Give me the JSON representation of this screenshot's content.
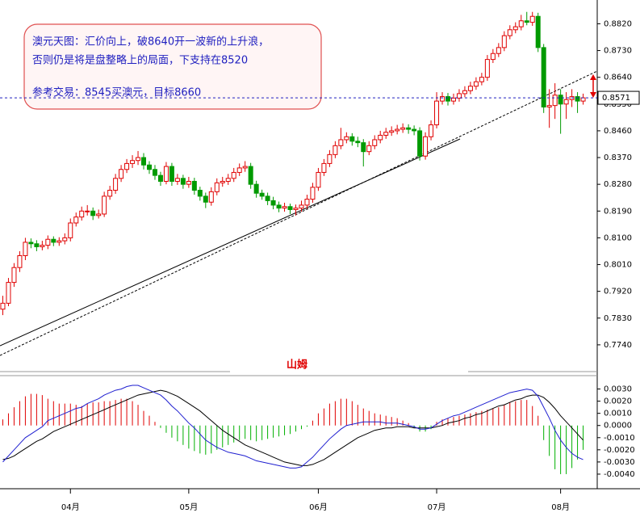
{
  "author": "山姆",
  "chart_data": [
    {
      "type": "candlestick",
      "up_color": "#e00000",
      "down_color": "#009a00",
      "annotations": [
        "澳元天图：汇价向上，破8640开一波新的上升浪，",
        "否则仍是将是盘整略上的局面，下支持在8520",
        "参考交易：8545买澳元，目标8660"
      ],
      "xlim": [
        -0.5,
        105.5
      ],
      "ylim": [
        0.765,
        0.89
      ],
      "yticks": [
        {
          "value": 0.882,
          "label": "0.8820"
        },
        {
          "value": 0.873,
          "label": "0.8730"
        },
        {
          "value": 0.864,
          "label": "0.8640"
        },
        {
          "value": 0.855,
          "label": "0.8550"
        },
        {
          "value": 0.846,
          "label": "0.8460"
        },
        {
          "value": 0.837,
          "label": "0.8370"
        },
        {
          "value": 0.828,
          "label": "0.8280"
        },
        {
          "value": 0.819,
          "label": "0.8190"
        },
        {
          "value": 0.81,
          "label": "0.8100"
        },
        {
          "value": 0.801,
          "label": "0.8010"
        },
        {
          "value": 0.792,
          "label": "0.7920"
        },
        {
          "value": 0.783,
          "label": "0.7830"
        },
        {
          "value": 0.774,
          "label": "0.7740"
        }
      ],
      "ohlc": [
        [
          0.786,
          0.7905,
          0.784,
          0.788
        ],
        [
          0.788,
          0.7965,
          0.787,
          0.795
        ],
        [
          0.795,
          0.8015,
          0.7935,
          0.8
        ],
        [
          0.8,
          0.8055,
          0.7985,
          0.804
        ],
        [
          0.804,
          0.81,
          0.8025,
          0.8085
        ],
        [
          0.8085,
          0.8098,
          0.8065,
          0.808
        ],
        [
          0.808,
          0.8092,
          0.8055,
          0.807
        ],
        [
          0.807,
          0.809,
          0.8058,
          0.8075
        ],
        [
          0.8075,
          0.8108,
          0.8062,
          0.8095
        ],
        [
          0.8095,
          0.8105,
          0.8072,
          0.8085
        ],
        [
          0.8085,
          0.8102,
          0.8073,
          0.809
        ],
        [
          0.809,
          0.8115,
          0.8078,
          0.81
        ],
        [
          0.81,
          0.8165,
          0.8088,
          0.815
        ],
        [
          0.815,
          0.8185,
          0.8138,
          0.817
        ],
        [
          0.817,
          0.8205,
          0.8158,
          0.819
        ],
        [
          0.819,
          0.821,
          0.8175,
          0.819
        ],
        [
          0.819,
          0.8202,
          0.816,
          0.8175
        ],
        [
          0.8175,
          0.8195,
          0.8165,
          0.818
        ],
        [
          0.818,
          0.8255,
          0.817,
          0.824
        ],
        [
          0.824,
          0.8275,
          0.8228,
          0.826
        ],
        [
          0.826,
          0.8315,
          0.8248,
          0.83
        ],
        [
          0.83,
          0.8345,
          0.8288,
          0.833
        ],
        [
          0.833,
          0.8365,
          0.8318,
          0.835
        ],
        [
          0.835,
          0.8378,
          0.8335,
          0.836
        ],
        [
          0.836,
          0.8392,
          0.8345,
          0.837
        ],
        [
          0.837,
          0.8385,
          0.833,
          0.8345
        ],
        [
          0.8345,
          0.8358,
          0.8315,
          0.833
        ],
        [
          0.833,
          0.8345,
          0.8295,
          0.831
        ],
        [
          0.831,
          0.8322,
          0.8275,
          0.829
        ],
        [
          0.829,
          0.8355,
          0.828,
          0.834
        ],
        [
          0.834,
          0.8352,
          0.8275,
          0.829
        ],
        [
          0.829,
          0.8315,
          0.8278,
          0.83
        ],
        [
          0.83,
          0.8312,
          0.8265,
          0.828
        ],
        [
          0.828,
          0.8305,
          0.8268,
          0.829
        ],
        [
          0.829,
          0.8302,
          0.8245,
          0.826
        ],
        [
          0.826,
          0.8272,
          0.8225,
          0.824
        ],
        [
          0.824,
          0.8252,
          0.82,
          0.822
        ],
        [
          0.822,
          0.827,
          0.8208,
          0.8255
        ],
        [
          0.8255,
          0.83,
          0.8243,
          0.8285
        ],
        [
          0.8285,
          0.8305,
          0.8272,
          0.829
        ],
        [
          0.829,
          0.8315,
          0.8278,
          0.83
        ],
        [
          0.83,
          0.8335,
          0.8288,
          0.832
        ],
        [
          0.832,
          0.835,
          0.8308,
          0.8335
        ],
        [
          0.8335,
          0.8358,
          0.8322,
          0.834
        ],
        [
          0.834,
          0.8352,
          0.8265,
          0.828
        ],
        [
          0.828,
          0.8292,
          0.8235,
          0.825
        ],
        [
          0.825,
          0.8262,
          0.8228,
          0.824
        ],
        [
          0.824,
          0.8252,
          0.821,
          0.8225
        ],
        [
          0.8225,
          0.8238,
          0.8196,
          0.821
        ],
        [
          0.821,
          0.8222,
          0.8186,
          0.82
        ],
        [
          0.82,
          0.8218,
          0.8188,
          0.8205
        ],
        [
          0.8205,
          0.8215,
          0.818,
          0.8195
        ],
        [
          0.8195,
          0.8212,
          0.8175,
          0.82
        ],
        [
          0.82,
          0.8225,
          0.8188,
          0.821
        ],
        [
          0.821,
          0.8245,
          0.8198,
          0.823
        ],
        [
          0.823,
          0.8285,
          0.8218,
          0.827
        ],
        [
          0.827,
          0.8335,
          0.8258,
          0.832
        ],
        [
          0.832,
          0.8365,
          0.8308,
          0.835
        ],
        [
          0.835,
          0.8395,
          0.8338,
          0.838
        ],
        [
          0.838,
          0.8425,
          0.8368,
          0.841
        ],
        [
          0.841,
          0.847,
          0.8398,
          0.843
        ],
        [
          0.843,
          0.8455,
          0.8418,
          0.844
        ],
        [
          0.844,
          0.8452,
          0.841,
          0.8425
        ],
        [
          0.8425,
          0.844,
          0.8405,
          0.842
        ],
        [
          0.842,
          0.8432,
          0.834,
          0.839
        ],
        [
          0.839,
          0.8425,
          0.8378,
          0.841
        ],
        [
          0.841,
          0.8445,
          0.8398,
          0.843
        ],
        [
          0.843,
          0.846,
          0.8418,
          0.8445
        ],
        [
          0.8445,
          0.847,
          0.8433,
          0.8455
        ],
        [
          0.8455,
          0.8475,
          0.8443,
          0.846
        ],
        [
          0.846,
          0.848,
          0.8448,
          0.8465
        ],
        [
          0.8465,
          0.8485,
          0.8453,
          0.847
        ],
        [
          0.847,
          0.8482,
          0.845,
          0.8465
        ],
        [
          0.8465,
          0.8478,
          0.8445,
          0.846
        ],
        [
          0.846,
          0.8472,
          0.836,
          0.8375
        ],
        [
          0.8375,
          0.8455,
          0.8363,
          0.844
        ],
        [
          0.844,
          0.8495,
          0.8428,
          0.848
        ],
        [
          0.848,
          0.859,
          0.8468,
          0.856
        ],
        [
          0.856,
          0.859,
          0.8548,
          0.8575
        ],
        [
          0.8575,
          0.8587,
          0.8545,
          0.856
        ],
        [
          0.856,
          0.8585,
          0.8548,
          0.857
        ],
        [
          0.857,
          0.86,
          0.8558,
          0.8585
        ],
        [
          0.8585,
          0.861,
          0.8573,
          0.8595
        ],
        [
          0.8595,
          0.8625,
          0.8583,
          0.861
        ],
        [
          0.861,
          0.864,
          0.8598,
          0.8625
        ],
        [
          0.8625,
          0.8655,
          0.8613,
          0.864
        ],
        [
          0.864,
          0.8715,
          0.8628,
          0.87
        ],
        [
          0.87,
          0.8735,
          0.8688,
          0.872
        ],
        [
          0.872,
          0.8755,
          0.8708,
          0.874
        ],
        [
          0.874,
          0.8795,
          0.8728,
          0.878
        ],
        [
          0.878,
          0.8815,
          0.8768,
          0.88
        ],
        [
          0.88,
          0.8825,
          0.8788,
          0.881
        ],
        [
          0.881,
          0.885,
          0.8798,
          0.883
        ],
        [
          0.883,
          0.886,
          0.8815,
          0.8825
        ],
        [
          0.8825,
          0.886,
          0.8813,
          0.8845
        ],
        [
          0.8845,
          0.8857,
          0.8725,
          0.874
        ],
        [
          0.874,
          0.8752,
          0.852,
          0.854
        ],
        [
          0.854,
          0.86,
          0.847,
          0.8545
        ],
        [
          0.8545,
          0.862,
          0.85,
          0.858
        ],
        [
          0.858,
          0.86,
          0.845,
          0.855
        ],
        [
          0.855,
          0.859,
          0.85,
          0.8565
        ],
        [
          0.8565,
          0.86,
          0.854,
          0.8575
        ],
        [
          0.8575,
          0.859,
          0.852,
          0.856
        ],
        [
          0.856,
          0.8585,
          0.8548,
          0.8571
        ]
      ]
    },
    {
      "type": "macd",
      "xlim": [
        -0.5,
        105.5
      ],
      "ylim": [
        -0.0052,
        0.0041
      ],
      "xticks": [
        {
          "value": 12,
          "label": "04月"
        },
        {
          "value": 33,
          "label": "05月"
        },
        {
          "value": 56,
          "label": "06月"
        },
        {
          "value": 77,
          "label": "07月"
        },
        {
          "value": 99,
          "label": "08月"
        }
      ],
      "yticks": [
        {
          "value": 0.003,
          "label": "0.0030"
        },
        {
          "value": 0.002,
          "label": "0.0020"
        },
        {
          "value": 0.001,
          "label": "0.0010"
        },
        {
          "value": 0,
          "label": "0.0000"
        },
        {
          "value": -0.001,
          "label": "-0.0010"
        },
        {
          "value": -0.002,
          "label": "-0.0020"
        },
        {
          "value": -0.003,
          "label": "-0.0030"
        },
        {
          "value": -0.004,
          "label": "-0.0040"
        }
      ],
      "histogram": {
        "up_color": "#e00000",
        "down_color": "#00b000",
        "values": [
          0.0005,
          0.001,
          0.0015,
          0.002,
          0.0024,
          0.0026,
          0.0026,
          0.0025,
          0.0022,
          0.002,
          0.0018,
          0.0018,
          0.0018,
          0.0017,
          0.0016,
          0.0018,
          0.0019,
          0.0019,
          0.002,
          0.002,
          0.0021,
          0.0022,
          0.0022,
          0.002,
          0.0017,
          0.0012,
          0.0008,
          0.0003,
          -0.0002,
          -0.0006,
          -0.001,
          -0.0013,
          -0.0016,
          -0.0019,
          -0.0021,
          -0.0023,
          -0.0024,
          -0.0023,
          -0.002,
          -0.0018,
          -0.0016,
          -0.0014,
          -0.0012,
          -0.0011,
          -0.0012,
          -0.0013,
          -0.0012,
          -0.0011,
          -0.001,
          -0.0009,
          -0.0008,
          -0.0007,
          -0.0005,
          -0.0003,
          -0.0001,
          0.0004,
          0.001,
          0.0014,
          0.0018,
          0.002,
          0.0022,
          0.0022,
          0.002,
          0.0017,
          0.0014,
          0.0012,
          0.001,
          0.0009,
          0.0008,
          0.0007,
          0.0006,
          0.0004,
          0.0002,
          -0.0002,
          -0.0005,
          -0.0005,
          -0.0003,
          0.0003,
          0.0005,
          0.0006,
          0.0007,
          0.0008,
          0.0009,
          0.001,
          0.0011,
          0.0012,
          0.0013,
          0.0014,
          0.0015,
          0.0017,
          0.0019,
          0.002,
          0.0021,
          0.0021,
          0.0016,
          0.0008,
          -0.0012,
          -0.0025,
          -0.0036,
          -0.004,
          -0.004,
          -0.0035,
          -0.0028,
          -0.002
        ]
      },
      "dif": {
        "color": "#1f1fd0",
        "values": [
          -0.003,
          -0.0025,
          -0.002,
          -0.0015,
          -0.001,
          -0.0007,
          -0.0004,
          -0.0001,
          0.0004,
          0.0006,
          0.0008,
          0.001,
          0.0012,
          0.0014,
          0.0015,
          0.0018,
          0.002,
          0.0022,
          0.0025,
          0.0027,
          0.0029,
          0.003,
          0.0032,
          0.0033,
          0.0033,
          0.0031,
          0.0029,
          0.0027,
          0.0025,
          0.0021,
          0.0016,
          0.0012,
          0.0007,
          0.0002,
          -0.0002,
          -0.0007,
          -0.0012,
          -0.0015,
          -0.0018,
          -0.002,
          -0.0022,
          -0.0023,
          -0.0024,
          -0.0025,
          -0.0027,
          -0.0029,
          -0.003,
          -0.0031,
          -0.0032,
          -0.0033,
          -0.0034,
          -0.0035,
          -0.0035,
          -0.0034,
          -0.003,
          -0.0026,
          -0.0021,
          -0.0016,
          -0.0011,
          -0.0007,
          -0.0003,
          0.0,
          0.0001,
          0.0002,
          0.0003,
          0.0003,
          0.0003,
          0.0003,
          0.0002,
          0.0002,
          0.0002,
          0.0001,
          0.0,
          -0.0001,
          -0.0003,
          -0.0003,
          -0.0002,
          0.0001,
          0.0004,
          0.0006,
          0.0008,
          0.0009,
          0.0011,
          0.0013,
          0.0015,
          0.0017,
          0.0019,
          0.0021,
          0.0023,
          0.0025,
          0.0027,
          0.0028,
          0.0029,
          0.003,
          0.0029,
          0.0024,
          0.0015,
          0.0006,
          -0.0004,
          -0.0012,
          -0.0018,
          -0.0023,
          -0.0026,
          -0.0028
        ]
      },
      "dea": {
        "color": "#000000",
        "values": [
          -0.0028,
          -0.0027,
          -0.0025,
          -0.0022,
          -0.0019,
          -0.0016,
          -0.0013,
          -0.0011,
          -0.0008,
          -0.0005,
          -0.0003,
          -0.0001,
          0.0001,
          0.0003,
          0.0005,
          0.0007,
          0.0009,
          0.0011,
          0.0013,
          0.0015,
          0.0017,
          0.0019,
          0.0021,
          0.0023,
          0.0025,
          0.0026,
          0.0027,
          0.0028,
          0.0029,
          0.0028,
          0.0026,
          0.0024,
          0.0021,
          0.0018,
          0.0015,
          0.0012,
          0.0008,
          0.0004,
          0.0,
          -0.0004,
          -0.0007,
          -0.001,
          -0.0013,
          -0.0016,
          -0.0018,
          -0.002,
          -0.0022,
          -0.0024,
          -0.0026,
          -0.0028,
          -0.003,
          -0.0031,
          -0.0032,
          -0.0033,
          -0.0033,
          -0.0032,
          -0.003,
          -0.0028,
          -0.0025,
          -0.0022,
          -0.0019,
          -0.0016,
          -0.0013,
          -0.001,
          -0.0008,
          -0.0006,
          -0.0004,
          -0.0003,
          -0.0002,
          -0.0002,
          -0.0001,
          -0.0001,
          -0.0001,
          -0.0002,
          -0.0002,
          -0.0002,
          -0.0002,
          -0.0001,
          0.0,
          0.0002,
          0.0003,
          0.0004,
          0.0006,
          0.0007,
          0.0009,
          0.001,
          0.0012,
          0.0014,
          0.0016,
          0.0017,
          0.0019,
          0.0021,
          0.0022,
          0.0024,
          0.0025,
          0.0025,
          0.0023,
          0.0019,
          0.0014,
          0.0008,
          0.0003,
          -0.0002,
          -0.0007,
          -0.0012
        ]
      }
    }
  ]
}
